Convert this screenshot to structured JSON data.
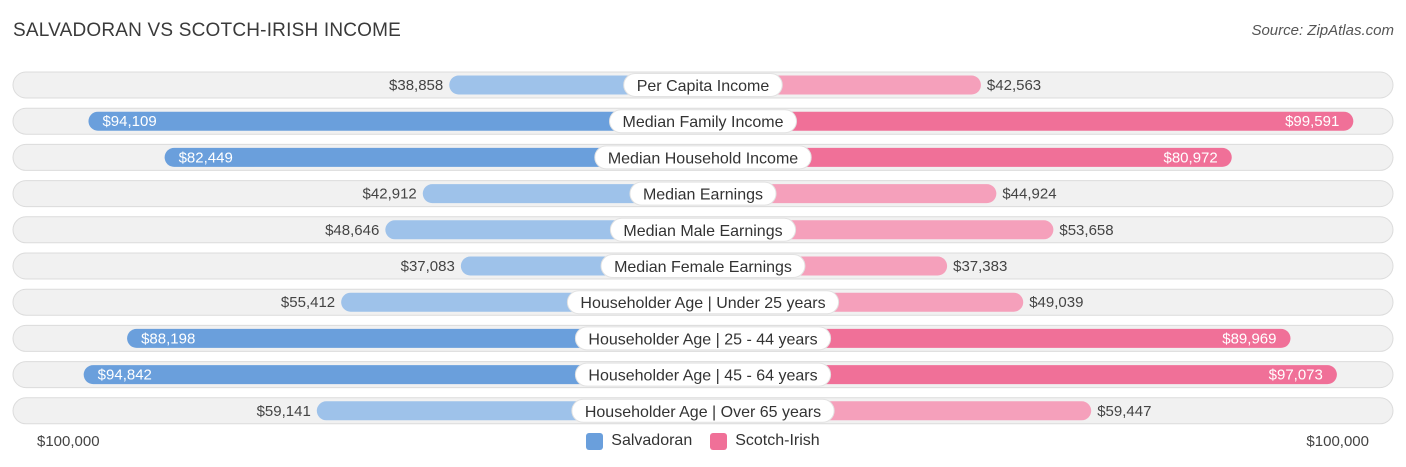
{
  "header": {
    "title": "SALVADORAN VS SCOTCH-IRISH INCOME",
    "source": "Source: ZipAtlas.com"
  },
  "colors": {
    "left_strong": "#6a9fdc",
    "left_light": "#9ec2ea",
    "right_strong": "#f07098",
    "right_light": "#f5a0bb"
  },
  "chart_data": {
    "type": "bar",
    "orientation": "horizontal-diverging",
    "title": "SALVADORAN VS SCOTCH-IRISH INCOME",
    "axis_max": 100000,
    "axis_left_label": "$100,000",
    "axis_right_label": "$100,000",
    "legend": [
      "Salvadoran",
      "Scotch-Irish"
    ],
    "categories": [
      "Per Capita Income",
      "Median Family Income",
      "Median Household Income",
      "Median Earnings",
      "Median Male Earnings",
      "Median Female Earnings",
      "Householder Age | Under 25 years",
      "Householder Age | 25 - 44 years",
      "Householder Age | 45 - 64 years",
      "Householder Age | Over 65 years"
    ],
    "series": [
      {
        "name": "Salvadoran",
        "values": [
          38858,
          94109,
          82449,
          42912,
          48646,
          37083,
          55412,
          88198,
          94842,
          59141
        ],
        "labels": [
          "$38,858",
          "$94,109",
          "$82,449",
          "$42,912",
          "$48,646",
          "$37,083",
          "$55,412",
          "$88,198",
          "$94,842",
          "$59,141"
        ]
      },
      {
        "name": "Scotch-Irish",
        "values": [
          42563,
          99591,
          80972,
          44924,
          53658,
          37383,
          49039,
          89969,
          97073,
          59447
        ],
        "labels": [
          "$42,563",
          "$99,591",
          "$80,972",
          "$44,924",
          "$53,658",
          "$37,383",
          "$49,039",
          "$89,969",
          "$97,073",
          "$59,447"
        ]
      }
    ]
  }
}
